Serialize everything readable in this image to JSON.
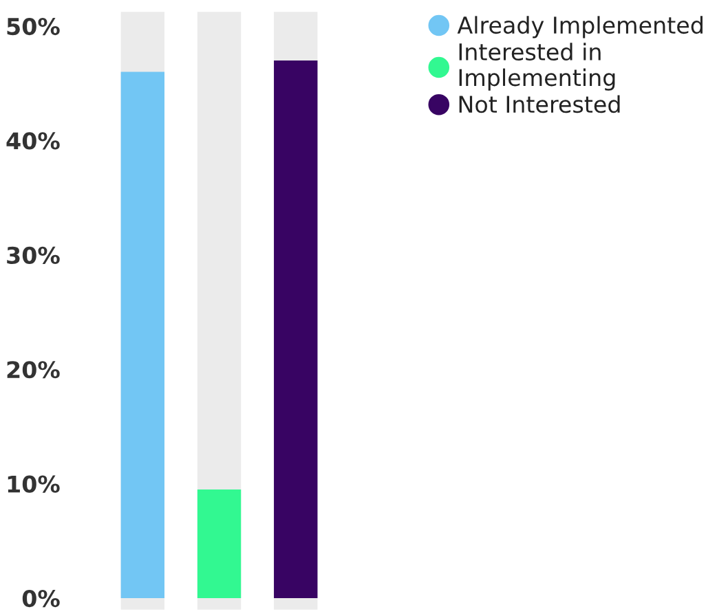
{
  "chart_data": {
    "type": "bar",
    "stacked": true,
    "categories": [
      null,
      null,
      null
    ],
    "series": [
      {
        "name": "Already Implemented",
        "color": "#72c6f4",
        "values": [
          46,
          null,
          null
        ]
      },
      {
        "name": "Interested in\nImplementing",
        "color": "#32f891",
        "values": [
          null,
          9.5,
          null
        ]
      },
      {
        "name": "Not Interested",
        "color": "#380463",
        "values": [
          null,
          null,
          47
        ]
      }
    ],
    "ylim": [
      0,
      50
    ],
    "yticks": [
      {
        "value": 0,
        "label": "0%"
      },
      {
        "value": 10,
        "label": "10%"
      },
      {
        "value": 20,
        "label": "20%"
      },
      {
        "value": 30,
        "label": "30%"
      },
      {
        "value": 40,
        "label": "40%"
      },
      {
        "value": 50,
        "label": "50%"
      }
    ],
    "tick_labels": "y",
    "grid": false,
    "legend": "top right",
    "marker": "circle"
  }
}
